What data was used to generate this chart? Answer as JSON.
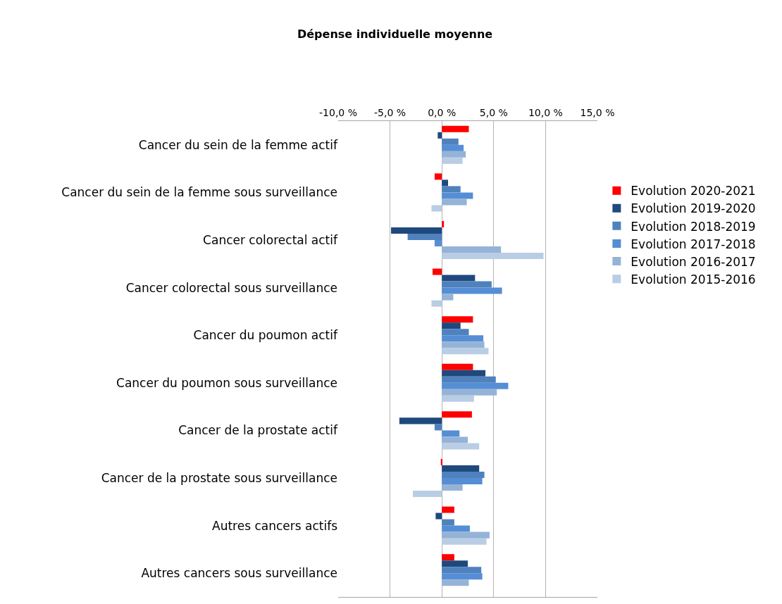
{
  "chart_data": {
    "type": "bar",
    "orientation": "horizontal",
    "title": "Dépense individuelle moyenne",
    "categories": [
      "Cancer du sein de la femme actif",
      "Cancer du sein de la femme sous surveillance",
      "Cancer colorectal actif",
      "Cancer colorectal sous surveillance",
      "Cancer du poumon actif",
      "Cancer du poumon sous surveillance",
      "Cancer de la prostate actif",
      "Cancer de la prostate sous surveillance",
      "Autres cancers actifs",
      "Autres cancers sous surveillance"
    ],
    "series": [
      {
        "name": "Evolution 2020-2021",
        "color": "#ff0000",
        "values": [
          2.6,
          -0.7,
          0.2,
          -0.9,
          3.0,
          3.0,
          2.9,
          -0.1,
          1.2,
          1.2
        ]
      },
      {
        "name": "Evolution 2019-2020",
        "color": "#1f497d",
        "values": [
          -0.4,
          0.6,
          -4.9,
          3.2,
          1.8,
          4.2,
          -4.1,
          3.6,
          -0.6,
          2.5
        ]
      },
      {
        "name": "Evolution 2018-2019",
        "color": "#4f81bd",
        "values": [
          1.6,
          1.8,
          -3.3,
          4.8,
          2.6,
          5.2,
          -0.7,
          4.1,
          1.2,
          3.8
        ]
      },
      {
        "name": "Evolution 2017-2018",
        "color": "#558ed5",
        "values": [
          2.1,
          3.0,
          -0.7,
          5.8,
          4.0,
          6.4,
          1.7,
          3.9,
          2.7,
          3.9
        ]
      },
      {
        "name": "Evolution 2016-2017",
        "color": "#95b3d7",
        "values": [
          2.3,
          2.4,
          5.7,
          1.1,
          4.1,
          5.3,
          2.5,
          2.0,
          4.6,
          2.6
        ]
      },
      {
        "name": "Evolution 2015-2016",
        "color": "#b9cde5",
        "values": [
          2.0,
          -1.0,
          9.8,
          -1.0,
          4.5,
          3.1,
          3.6,
          -2.8,
          4.3,
          null
        ]
      }
    ],
    "xlim": [
      -10,
      15
    ],
    "xticks": [
      {
        "value": -10,
        "label": "-10,0 %"
      },
      {
        "value": -5,
        "label": "-5,0 %"
      },
      {
        "value": 0,
        "label": "0,0 %"
      },
      {
        "value": 5,
        "label": "5,0 %"
      },
      {
        "value": 10,
        "label": "10,0 %"
      },
      {
        "value": 15,
        "label": "15,0 %"
      }
    ],
    "grid": "x",
    "legend": "right"
  }
}
